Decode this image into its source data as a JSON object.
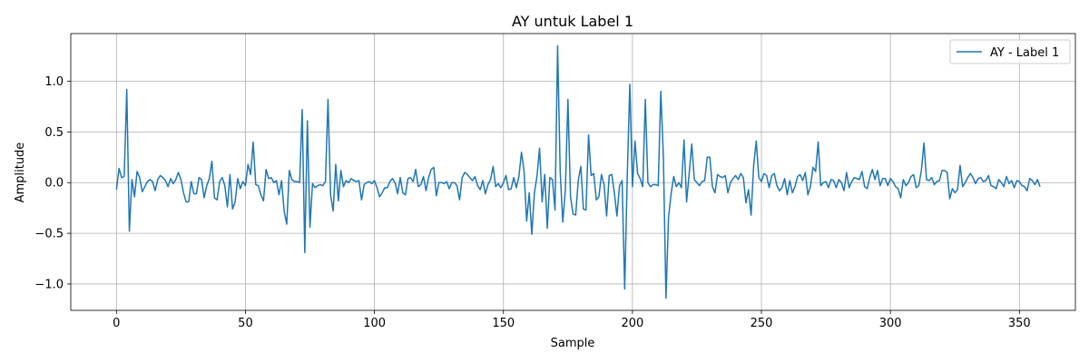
{
  "chart_data": {
    "type": "line",
    "title": "AY untuk Label 1",
    "xlabel": "Sample",
    "ylabel": "Amplitude",
    "xlim": [
      -17.7,
      371.7
    ],
    "ylim": [
      -1.26,
      1.47
    ],
    "xticks": [
      0,
      50,
      100,
      150,
      200,
      250,
      300,
      350
    ],
    "yticks": [
      -1.0,
      -0.5,
      0.0,
      0.5,
      1.0
    ],
    "xtick_labels": [
      "0",
      "50",
      "100",
      "150",
      "200",
      "250",
      "300",
      "350"
    ],
    "ytick_labels": [
      "−1.0",
      "−0.5",
      "0.0",
      "0.5",
      "1.0"
    ],
    "grid": true,
    "legend_position": "top-right",
    "series": [
      {
        "name": "AY - Label 1",
        "color": "#1f77b4",
        "x_start": 0,
        "x_step": 1,
        "values": [
          -0.07,
          0.14,
          0.05,
          0.06,
          0.92,
          -0.48,
          0.03,
          -0.14,
          0.11,
          0.05,
          -0.09,
          -0.04,
          0.01,
          0.03,
          0.01,
          -0.08,
          0.03,
          0.07,
          0.05,
          0.02,
          -0.04,
          0.04,
          -0.01,
          0.03,
          0.1,
          0.03,
          -0.1,
          -0.19,
          -0.19,
          0.01,
          -0.11,
          -0.11,
          0.05,
          0.03,
          -0.15,
          -0.03,
          0.04,
          0.21,
          -0.15,
          -0.17,
          0.01,
          0.05,
          -0.03,
          -0.24,
          0.08,
          -0.26,
          -0.19,
          0.04,
          -0.06,
          0.01,
          -0.03,
          0.18,
          0.08,
          0.4,
          -0.02,
          -0.03,
          -0.12,
          -0.18,
          0.13,
          0.04,
          0.05,
          0.0,
          0.02,
          -0.12,
          0.02,
          -0.28,
          -0.41,
          0.12,
          0.03,
          0.01,
          0.01,
          0.0,
          0.72,
          -0.69,
          0.61,
          -0.44,
          -0.01,
          -0.05,
          -0.03,
          -0.02,
          -0.03,
          0.01,
          0.82,
          -0.12,
          -0.28,
          0.18,
          -0.18,
          0.12,
          -0.04,
          0.02,
          0.0,
          0.04,
          0.02,
          0.01,
          0.02,
          -0.17,
          -0.02,
          0.0,
          0.01,
          -0.01,
          0.02,
          -0.05,
          -0.14,
          -0.1,
          -0.05,
          -0.05,
          0.01,
          0.04,
          0.0,
          -0.11,
          0.05,
          -0.1,
          -0.12,
          0.04,
          0.05,
          0.01,
          0.13,
          -0.04,
          -0.02,
          0.06,
          -0.08,
          0.05,
          0.13,
          0.15,
          -0.13,
          0.0,
          0.0,
          -0.01,
          0.01,
          -0.06,
          0.0,
          0.0,
          -0.03,
          -0.17,
          0.05,
          0.1,
          0.08,
          0.05,
          0.02,
          0.06,
          -0.03,
          -0.07,
          0.02,
          -0.11,
          -0.02,
          0.03,
          0.16,
          -0.04,
          -0.01,
          -0.05,
          0.0,
          0.07,
          -0.07,
          -0.06,
          0.05,
          -0.05,
          0.06,
          0.3,
          0.11,
          -0.38,
          -0.1,
          -0.51,
          -0.1,
          0.06,
          0.34,
          -0.19,
          0.08,
          -0.45,
          0.05,
          0.03,
          -0.27,
          1.35,
          0.11,
          -0.39,
          -0.08,
          0.82,
          -0.14,
          -0.31,
          -0.32,
          0.02,
          0.16,
          -0.26,
          -0.27,
          0.47,
          0.07,
          0.09,
          -0.17,
          -0.14,
          0.08,
          -0.02,
          -0.33,
          0.07,
          0.08,
          -0.1,
          -0.33,
          -0.03,
          0.02,
          -1.05,
          0.07,
          0.97,
          -0.04,
          0.41,
          0.09,
          0.04,
          -0.04,
          0.82,
          0.0,
          -0.04,
          -0.02,
          -0.02,
          -0.03,
          0.9,
          0.26,
          -1.14,
          -0.34,
          -0.11,
          0.06,
          -0.04,
          0.0,
          -0.05,
          0.42,
          -0.19,
          0.09,
          0.38,
          0.03,
          0.0,
          -0.03,
          0.01,
          0.02,
          0.25,
          0.25,
          -0.04,
          -0.1,
          0.08,
          0.06,
          0.05,
          0.07,
          -0.1,
          0.0,
          0.04,
          0.07,
          0.03,
          0.09,
          0.05,
          -0.2,
          -0.07,
          -0.32,
          0.17,
          0.41,
          0.05,
          0.01,
          0.09,
          0.07,
          -0.05,
          0.07,
          0.09,
          -0.03,
          -0.08,
          -0.05,
          0.04,
          -0.12,
          0.02,
          -0.1,
          -0.04,
          0.06,
          0.08,
          0.02,
          0.1,
          -0.12,
          -0.04,
          0.15,
          0.11,
          0.4,
          -0.03,
          0.0,
          0.01,
          -0.05,
          0.03,
          0.02,
          -0.05,
          0.03,
          0.0,
          -0.08,
          0.1,
          -0.05,
          0.01,
          0.05,
          0.04,
          0.03,
          0.11,
          -0.04,
          -0.06,
          0.05,
          0.13,
          0.03,
          0.12,
          -0.03,
          0.04,
          0.04,
          -0.03,
          0.04,
          0.01,
          -0.04,
          -0.06,
          -0.15,
          0.03,
          -0.03,
          0.0,
          0.06,
          0.08,
          -0.05,
          -0.03,
          0.12,
          0.39,
          0.03,
          0.02,
          0.05,
          -0.02,
          0.01,
          0.02,
          0.12,
          0.12,
          0.1,
          -0.16,
          -0.06,
          -0.1,
          -0.07,
          0.17,
          -0.04,
          0.0,
          0.05,
          0.09,
          0.05,
          -0.01,
          0.04,
          0.05,
          0.01,
          0.02,
          0.07,
          -0.03,
          -0.04,
          -0.06,
          0.03,
          0.0,
          -0.04,
          0.06,
          -0.01,
          0.02,
          -0.05,
          0.02,
          0.01,
          -0.03,
          -0.04,
          -0.08,
          0.04,
          0.02,
          -0.02,
          0.03,
          -0.04
        ]
      }
    ]
  }
}
